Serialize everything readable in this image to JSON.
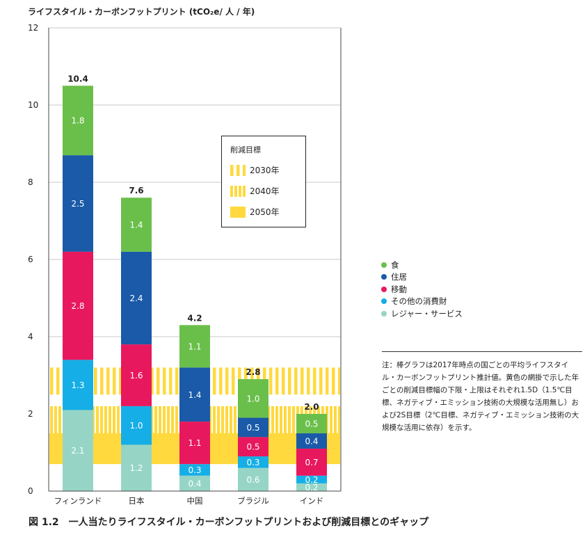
{
  "y_axis_title": "ライフスタイル・カーボンフットプリント (tCO₂e/ 人 / 年)",
  "caption": "図 1.2　一人当たりライフスタイル・カーボンフットプリントおよび削減目標とのギャップ",
  "note": "注：棒グラフは2017年時点の国ごとの平均ライフスタイル・カーボンフットプリント推計値。黄色の網掛で示した年ごとの削減目標幅の下限・上限はそれぞれ1.5D（1.5℃目標、ネガティブ・エミッション技術の大規模な活用無し）および2S目標（2℃目標、ネガティブ・エミッション技術の大規模な活用に依存）を示す。",
  "target_box": {
    "title": "削減目標",
    "items": [
      {
        "label": "2030年",
        "pattern": "stripe-wide"
      },
      {
        "label": "2040年",
        "pattern": "stripe-narrow"
      },
      {
        "label": "2050年",
        "pattern": "solid"
      }
    ]
  },
  "colors": {
    "食": "#6abf4b",
    "住居": "#1a5aa8",
    "移動": "#e8185e",
    "その他の消費財": "#16aee6",
    "レジャー・サービス": "#96d5c6",
    "target_yellow": "#ffd93d"
  },
  "chart_data": {
    "type": "bar",
    "stacked": true,
    "categories": [
      "フィンランド",
      "日本",
      "中国",
      "ブラジル",
      "インド"
    ],
    "series": [
      {
        "name": "レジャー・サービス",
        "values": [
          2.1,
          1.2,
          0.4,
          0.6,
          0.2
        ]
      },
      {
        "name": "その他の消費財",
        "values": [
          1.3,
          1.0,
          0.3,
          0.3,
          0.2
        ]
      },
      {
        "name": "移動",
        "values": [
          2.8,
          1.6,
          1.1,
          0.5,
          0.7
        ]
      },
      {
        "name": "住居",
        "values": [
          2.5,
          2.4,
          1.4,
          0.5,
          0.4
        ]
      },
      {
        "name": "食",
        "values": [
          1.8,
          1.4,
          1.1,
          1.0,
          0.5
        ]
      }
    ],
    "segment_labels": [
      [
        "2.1",
        "1.3",
        "2.8",
        "2.5",
        "1.8"
      ],
      [
        "1.2",
        "1.0",
        "1.6",
        "2.4",
        "1.4"
      ],
      [
        "0.4",
        "0.3",
        "1.1",
        "1.4",
        "1.1"
      ],
      [
        "0.6",
        "0.3",
        "0.5",
        "0.5",
        "1.0"
      ],
      [
        "0.2",
        "0.2",
        "0.7",
        "0.4",
        "0.5"
      ]
    ],
    "totals": [
      "10.4",
      "7.6",
      "4.2",
      "2.8",
      "2.0"
    ],
    "ylim": [
      0,
      12
    ],
    "yticks": [
      0,
      2,
      4,
      6,
      8,
      10,
      12
    ],
    "targets": [
      {
        "year": "2030年",
        "range": [
          2.5,
          3.2
        ],
        "pattern": "stripe-wide"
      },
      {
        "year": "2040年",
        "range": [
          1.4,
          2.2
        ],
        "pattern": "stripe-narrow"
      },
      {
        "year": "2050年",
        "range": [
          0.7,
          1.5
        ],
        "pattern": "solid"
      }
    ],
    "legend": [
      "食",
      "住居",
      "移動",
      "その他の消費財",
      "レジャー・サービス"
    ],
    "grid": true,
    "legend_position": "right"
  }
}
